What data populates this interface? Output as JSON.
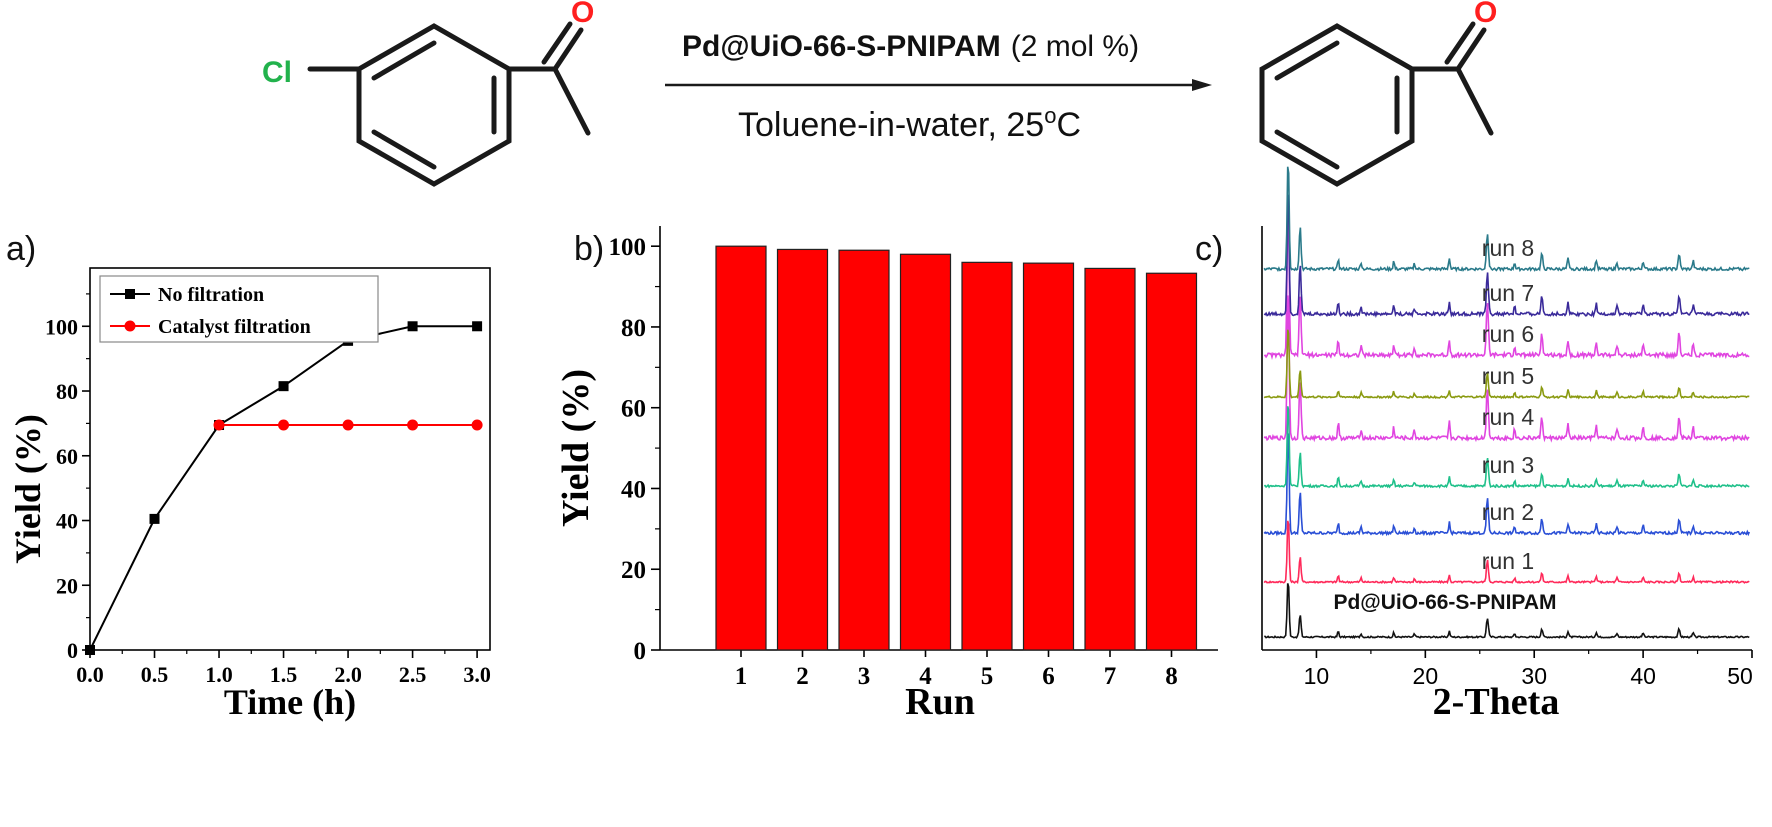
{
  "scheme": {
    "reactant_substituent": "Cl",
    "carbonyl_reactant": "O",
    "carbonyl_product": "O",
    "catalyst": "Pd@UiO-66-S-PNIPAM",
    "catalyst_loading": "(2 mol %)",
    "conditions_prefix": "Toluene-in-water, 25",
    "conditions_superscript": "o",
    "conditions_suffix": "C",
    "colors": {
      "oxygen": "#ff1f1f",
      "chlorine": "#22b24c",
      "bond": "#1a1a1a"
    }
  },
  "panels": {
    "a": "a)",
    "b": "b)",
    "c": "c)"
  },
  "chart_data": [
    {
      "id": "a",
      "type": "line",
      "xlabel": "Time (h)",
      "ylabel": "Yield (%)",
      "xlim": [
        0,
        3.1
      ],
      "ylim": [
        0,
        118
      ],
      "xticks": [
        "0.0",
        "0.5",
        "1.0",
        "1.5",
        "2.0",
        "2.5",
        "3.0"
      ],
      "xtick_values": [
        0,
        0.5,
        1.0,
        1.5,
        2.0,
        2.5,
        3.0
      ],
      "yticks": [
        "0",
        "20",
        "40",
        "60",
        "80",
        "100"
      ],
      "ytick_values": [
        0,
        20,
        40,
        60,
        80,
        100
      ],
      "legend_position": "top-left",
      "series": [
        {
          "name": "No filtration",
          "color": "#000000",
          "marker": "square",
          "x": [
            0,
            0.5,
            1.0,
            1.5,
            2.0,
            2.5,
            3.0
          ],
          "y": [
            0,
            40.5,
            69.5,
            81.5,
            95.5,
            100,
            100
          ]
        },
        {
          "name": "Catalyst filtration",
          "color": "#ff0000",
          "marker": "circle",
          "x": [
            1.0,
            1.5,
            2.0,
            2.5,
            3.0
          ],
          "y": [
            69.5,
            69.5,
            69.5,
            69.5,
            69.5
          ]
        }
      ]
    },
    {
      "id": "b",
      "type": "bar",
      "xlabel": "Run",
      "ylabel": "Yield (%)",
      "ylim": [
        0,
        105
      ],
      "categories": [
        "1",
        "2",
        "3",
        "4",
        "5",
        "6",
        "7",
        "8"
      ],
      "values": [
        100,
        99.2,
        99,
        98,
        96,
        95.8,
        94.5,
        93.3
      ],
      "yticks": [
        "0",
        "20",
        "40",
        "60",
        "80",
        "100"
      ],
      "ytick_values": [
        0,
        20,
        40,
        60,
        80,
        100
      ],
      "bar_color": "#ff0000"
    },
    {
      "id": "c",
      "type": "line",
      "xlabel": "2-Theta",
      "xlim": [
        5,
        50
      ],
      "xticks": [
        "10",
        "20",
        "30",
        "40",
        "50"
      ],
      "xtick_values": [
        10,
        20,
        30,
        40,
        50
      ],
      "series": [
        {
          "name": "Pd@UiO-66-S-PNIPAM",
          "color": "#111111"
        },
        {
          "name": "run 1",
          "color": "#ff2a5a"
        },
        {
          "name": "run 2",
          "color": "#2a4fd6"
        },
        {
          "name": "run 3",
          "color": "#1fc08a"
        },
        {
          "name": "run 4",
          "color": "#e045e0"
        },
        {
          "name": "run 5",
          "color": "#8a9a10"
        },
        {
          "name": "run 6",
          "color": "#e045e0"
        },
        {
          "name": "run 7",
          "color": "#3a2a9a"
        },
        {
          "name": "run 8",
          "color": "#2a7a8a"
        }
      ]
    }
  ]
}
